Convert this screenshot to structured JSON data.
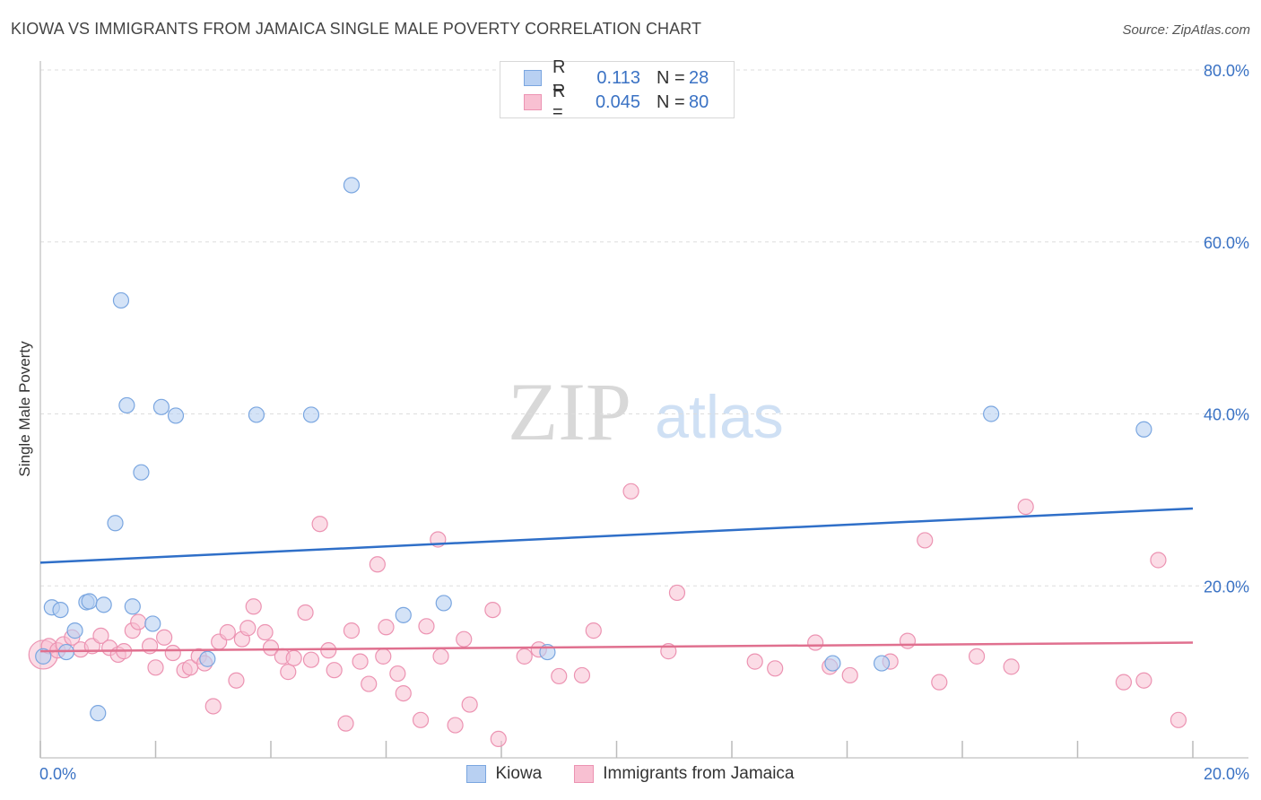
{
  "header": {
    "title": "KIOWA VS IMMIGRANTS FROM JAMAICA SINGLE MALE POVERTY CORRELATION CHART",
    "source": "Source: ZipAtlas.com"
  },
  "watermark": {
    "zip": "ZIP",
    "atlas": "atlas"
  },
  "legend": {
    "kiowa": {
      "r_label": "R =",
      "r_value": "0.113",
      "n_label": "N =",
      "n_value": "28"
    },
    "jamaica": {
      "r_label": "R =",
      "r_value": "0.045",
      "n_label": "N =",
      "n_value": "80"
    }
  },
  "colors": {
    "kiowa_fill": "#b8d0f2",
    "kiowa_stroke": "#7aa6e0",
    "kiowa_line": "#2f6fc8",
    "jamaica_fill": "#f8c0d2",
    "jamaica_stroke": "#ec93b2",
    "jamaica_line": "#e0708f",
    "tick_label": "#3a72c4",
    "grid": "#dddddd"
  },
  "chart_data": {
    "type": "scatter",
    "title": "KIOWA VS IMMIGRANTS FROM JAMAICA SINGLE MALE POVERTY CORRELATION CHART",
    "xlabel": "",
    "ylabel": "Single Male Poverty",
    "xlim": [
      0,
      20
    ],
    "ylim": [
      0,
      80
    ],
    "x_tick_labels": [
      "0.0%",
      "20.0%"
    ],
    "y_ticks": [
      20,
      40,
      60,
      80
    ],
    "y_tick_labels": [
      "20.0%",
      "40.0%",
      "60.0%",
      "80.0%"
    ],
    "grid": true,
    "series": [
      {
        "name": "Kiowa",
        "trend": {
          "x": [
            0,
            20
          ],
          "y": [
            22.7,
            29.0
          ]
        },
        "points": [
          {
            "x": 0.05,
            "y": 11.8
          },
          {
            "x": 0.2,
            "y": 17.5
          },
          {
            "x": 0.35,
            "y": 17.2
          },
          {
            "x": 0.45,
            "y": 12.3
          },
          {
            "x": 0.6,
            "y": 14.8
          },
          {
            "x": 0.8,
            "y": 18.1
          },
          {
            "x": 0.85,
            "y": 18.2
          },
          {
            "x": 1.1,
            "y": 17.8
          },
          {
            "x": 1.0,
            "y": 5.2
          },
          {
            "x": 1.3,
            "y": 27.3
          },
          {
            "x": 1.4,
            "y": 53.2
          },
          {
            "x": 1.5,
            "y": 41.0
          },
          {
            "x": 1.6,
            "y": 17.6
          },
          {
            "x": 1.75,
            "y": 33.2
          },
          {
            "x": 1.95,
            "y": 15.6
          },
          {
            "x": 2.1,
            "y": 40.8
          },
          {
            "x": 2.35,
            "y": 39.8
          },
          {
            "x": 2.9,
            "y": 11.5
          },
          {
            "x": 3.75,
            "y": 39.9
          },
          {
            "x": 4.7,
            "y": 39.9
          },
          {
            "x": 5.4,
            "y": 66.6
          },
          {
            "x": 6.3,
            "y": 16.6
          },
          {
            "x": 7.0,
            "y": 18.0
          },
          {
            "x": 8.8,
            "y": 12.3
          },
          {
            "x": 13.75,
            "y": 11.0
          },
          {
            "x": 14.6,
            "y": 11.0
          },
          {
            "x": 16.5,
            "y": 40.0
          },
          {
            "x": 19.15,
            "y": 38.2
          }
        ]
      },
      {
        "name": "Immigrants from Jamaica",
        "trend": {
          "x": [
            0,
            20
          ],
          "y": [
            12.4,
            13.4
          ]
        },
        "points": [
          {
            "x": 0.05,
            "y": 12.0
          },
          {
            "x": 0.15,
            "y": 13.0
          },
          {
            "x": 0.3,
            "y": 12.5
          },
          {
            "x": 0.4,
            "y": 13.2
          },
          {
            "x": 0.55,
            "y": 14.0
          },
          {
            "x": 0.7,
            "y": 12.6
          },
          {
            "x": 0.9,
            "y": 13.0
          },
          {
            "x": 1.05,
            "y": 14.2
          },
          {
            "x": 1.2,
            "y": 12.8
          },
          {
            "x": 1.35,
            "y": 12.0
          },
          {
            "x": 1.45,
            "y": 12.4
          },
          {
            "x": 1.6,
            "y": 14.8
          },
          {
            "x": 1.7,
            "y": 15.8
          },
          {
            "x": 1.9,
            "y": 13.0
          },
          {
            "x": 2.0,
            "y": 10.5
          },
          {
            "x": 2.15,
            "y": 14.0
          },
          {
            "x": 2.3,
            "y": 12.2
          },
          {
            "x": 2.5,
            "y": 10.2
          },
          {
            "x": 2.6,
            "y": 10.5
          },
          {
            "x": 2.75,
            "y": 11.8
          },
          {
            "x": 2.85,
            "y": 11.0
          },
          {
            "x": 3.0,
            "y": 6.0
          },
          {
            "x": 3.1,
            "y": 13.5
          },
          {
            "x": 3.25,
            "y": 14.6
          },
          {
            "x": 3.4,
            "y": 9.0
          },
          {
            "x": 3.5,
            "y": 13.8
          },
          {
            "x": 3.6,
            "y": 15.1
          },
          {
            "x": 3.7,
            "y": 17.6
          },
          {
            "x": 3.9,
            "y": 14.6
          },
          {
            "x": 4.0,
            "y": 12.8
          },
          {
            "x": 4.2,
            "y": 11.8
          },
          {
            "x": 4.3,
            "y": 10.0
          },
          {
            "x": 4.4,
            "y": 11.6
          },
          {
            "x": 4.6,
            "y": 16.9
          },
          {
            "x": 4.7,
            "y": 11.4
          },
          {
            "x": 4.85,
            "y": 27.2
          },
          {
            "x": 5.0,
            "y": 12.5
          },
          {
            "x": 5.1,
            "y": 10.2
          },
          {
            "x": 5.3,
            "y": 4.0
          },
          {
            "x": 5.4,
            "y": 14.8
          },
          {
            "x": 5.55,
            "y": 11.2
          },
          {
            "x": 5.7,
            "y": 8.6
          },
          {
            "x": 5.85,
            "y": 22.5
          },
          {
            "x": 5.95,
            "y": 11.8
          },
          {
            "x": 6.0,
            "y": 15.2
          },
          {
            "x": 6.2,
            "y": 9.8
          },
          {
            "x": 6.3,
            "y": 7.5
          },
          {
            "x": 6.6,
            "y": 4.4
          },
          {
            "x": 6.7,
            "y": 15.3
          },
          {
            "x": 6.9,
            "y": 25.4
          },
          {
            "x": 6.95,
            "y": 11.8
          },
          {
            "x": 7.2,
            "y": 3.8
          },
          {
            "x": 7.35,
            "y": 13.8
          },
          {
            "x": 7.45,
            "y": 6.2
          },
          {
            "x": 7.85,
            "y": 17.2
          },
          {
            "x": 7.95,
            "y": 2.2
          },
          {
            "x": 8.4,
            "y": 11.8
          },
          {
            "x": 8.65,
            "y": 12.6
          },
          {
            "x": 9.0,
            "y": 9.5
          },
          {
            "x": 9.4,
            "y": 9.6
          },
          {
            "x": 9.6,
            "y": 14.8
          },
          {
            "x": 10.25,
            "y": 31.0
          },
          {
            "x": 10.9,
            "y": 12.4
          },
          {
            "x": 11.05,
            "y": 19.2
          },
          {
            "x": 12.4,
            "y": 11.2
          },
          {
            "x": 12.75,
            "y": 10.4
          },
          {
            "x": 13.45,
            "y": 13.4
          },
          {
            "x": 13.7,
            "y": 10.6
          },
          {
            "x": 14.05,
            "y": 9.6
          },
          {
            "x": 14.75,
            "y": 11.2
          },
          {
            "x": 15.05,
            "y": 13.6
          },
          {
            "x": 15.35,
            "y": 25.3
          },
          {
            "x": 15.6,
            "y": 8.8
          },
          {
            "x": 16.25,
            "y": 11.8
          },
          {
            "x": 16.85,
            "y": 10.6
          },
          {
            "x": 17.1,
            "y": 29.2
          },
          {
            "x": 18.8,
            "y": 8.8
          },
          {
            "x": 19.15,
            "y": 9.0
          },
          {
            "x": 19.4,
            "y": 23.0
          },
          {
            "x": 19.75,
            "y": 4.4
          }
        ]
      }
    ]
  },
  "legend_bottom": {
    "kiowa": "Kiowa",
    "jamaica": "Immigrants from Jamaica"
  }
}
